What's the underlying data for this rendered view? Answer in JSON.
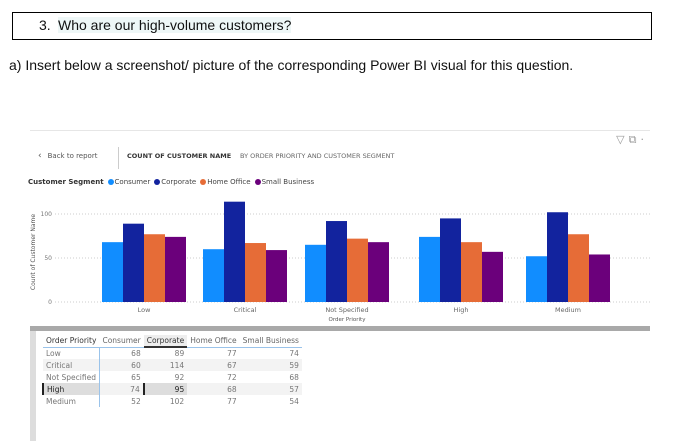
{
  "question": {
    "number": "3.",
    "text": "Who are our high-volume customers?"
  },
  "instruction": "a)  Insert below a screenshot/ picture of the corresponding Power BI visual for this question.",
  "visual": {
    "back_label": "Back to report",
    "title": "COUNT OF CUSTOMER NAME",
    "subtitle": "BY ORDER PRIORITY AND CUSTOMER SEGMENT",
    "icons": [
      "filter-icon",
      "focus-mode-icon",
      "more-options-icon"
    ]
  },
  "chart_data": {
    "type": "bar",
    "legend_title": "Customer Segment",
    "legend_position": "top-left",
    "categories": [
      "Low",
      "Critical",
      "Not Specified",
      "High",
      "Medium"
    ],
    "series": [
      {
        "name": "Consumer",
        "color": "#118dff",
        "values": [
          68,
          60,
          65,
          74,
          52
        ]
      },
      {
        "name": "Corporate",
        "color": "#12239e",
        "values": [
          89,
          114,
          92,
          95,
          102
        ]
      },
      {
        "name": "Home Office",
        "color": "#e66c37",
        "values": [
          77,
          67,
          72,
          68,
          77
        ]
      },
      {
        "name": "Small Business",
        "color": "#6b007b",
        "values": [
          74,
          59,
          68,
          57,
          54
        ]
      }
    ],
    "xlabel": "Order Priority",
    "ylabel": "Count of Customer Name",
    "yticks": [
      "0",
      "50",
      "100"
    ],
    "ylim": [
      0,
      120
    ],
    "grid": true
  },
  "table": {
    "headers": [
      "Order Priority",
      "Consumer",
      "Corporate",
      "Home Office",
      "Small Business"
    ],
    "selected_header": "Corporate",
    "rows": [
      [
        "Low",
        "68",
        "89",
        "77",
        "74"
      ],
      [
        "Critical",
        "60",
        "114",
        "67",
        "59"
      ],
      [
        "Not Specified",
        "65",
        "92",
        "72",
        "68"
      ],
      [
        "High",
        "74",
        "95",
        "68",
        "57"
      ],
      [
        "Medium",
        "52",
        "102",
        "77",
        "54"
      ]
    ],
    "highlighted_row": "High"
  }
}
